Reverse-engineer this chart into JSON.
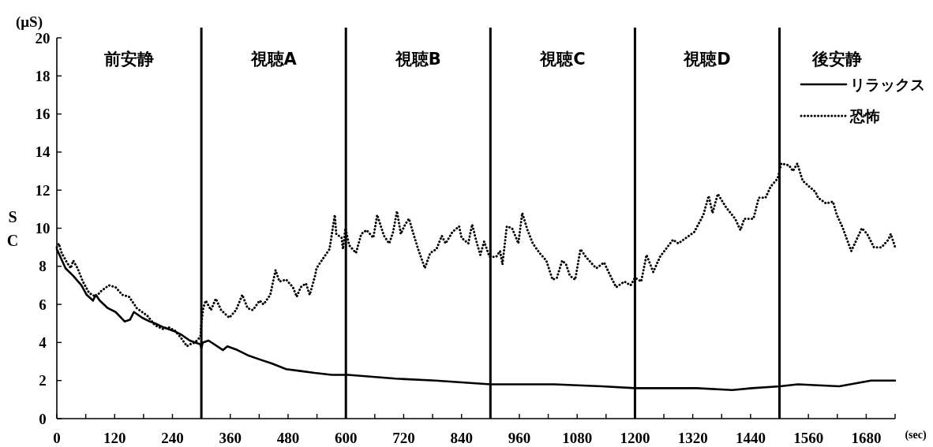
{
  "chart_data": {
    "type": "line",
    "xlabel": "(sec)",
    "ylabel": "SC",
    "annotations": [
      "(μS)",
      "前安静",
      "視聴A",
      "視聴B",
      "視聴C",
      "視聴D",
      "後安静"
    ],
    "xlim": [
      0,
      1740
    ],
    "ylim": [
      0,
      20
    ],
    "xticks": [
      0,
      {
        "value": 60,
        "label": null
      },
      120,
      {
        "value": 180,
        "label": null
      },
      240,
      {
        "value": 300,
        "label": null
      },
      360,
      {
        "value": 420,
        "label": null
      },
      480,
      {
        "value": 540,
        "label": null
      },
      600,
      {
        "value": 660,
        "label": null
      },
      720,
      {
        "value": 780,
        "label": null
      },
      840,
      {
        "value": 900,
        "label": null
      },
      960,
      {
        "value": 1020,
        "label": null
      },
      1080,
      {
        "value": 1140,
        "label": null
      },
      1200,
      {
        "value": 1260,
        "label": null
      },
      1320,
      {
        "value": 1380,
        "label": null
      },
      1440,
      {
        "value": 1500,
        "label": null
      },
      1560,
      {
        "value": 1620,
        "label": null
      },
      1680,
      {
        "value": 1740,
        "label": null
      }
    ],
    "yticks": [
      0,
      2,
      4,
      6,
      8,
      10,
      12,
      14,
      16,
      18,
      20
    ],
    "legend": "top right",
    "ref_lines": [
      {
        "axis": "x",
        "value": 300
      },
      {
        "axis": "x",
        "value": 600
      },
      {
        "axis": "x",
        "value": 900
      },
      {
        "axis": "x",
        "value": 1200
      },
      {
        "axis": "x",
        "value": 1500
      }
    ],
    "series": [
      {
        "name": "リラックス",
        "color": "#000000",
        "line_style": "solid",
        "x": [
          0,
          18,
          34,
          51,
          62,
          75,
          81,
          89,
          106,
          122,
          141,
          152,
          160,
          177,
          193,
          204,
          221,
          243,
          259,
          276,
          298,
          300,
          303,
          315,
          345,
          354,
          375,
          399,
          422,
          446,
          476,
          506,
          535,
          571,
          605,
          703,
          786,
          900,
          1032,
          1131,
          1201,
          1328,
          1402,
          1443,
          1501,
          1538,
          1624,
          1690,
          1740
        ],
        "values": [
          8.9,
          7.9,
          7.5,
          7.0,
          6.5,
          6.2,
          6.5,
          6.2,
          5.8,
          5.6,
          5.1,
          5.2,
          5.6,
          5.3,
          5.1,
          5.0,
          4.8,
          4.6,
          4.4,
          4.1,
          3.9,
          3.7,
          4.0,
          4.1,
          3.6,
          3.8,
          3.6,
          3.3,
          3.1,
          2.9,
          2.6,
          2.5,
          2.4,
          2.3,
          2.3,
          2.1,
          2.0,
          1.8,
          1.8,
          1.7,
          1.6,
          1.6,
          1.5,
          1.6,
          1.7,
          1.8,
          1.7,
          2.0,
          2.0
        ]
      },
      {
        "name": "恐怖",
        "color": "#000000",
        "line_style": "dotted",
        "x": [
          0,
          4,
          10,
          21,
          29,
          34,
          43,
          54,
          67,
          81,
          92,
          108,
          122,
          136,
          150,
          166,
          177,
          188,
          204,
          221,
          232,
          246,
          259,
          270,
          276,
          287,
          298,
          300,
          304,
          309,
          320,
          330,
          341,
          358,
          372,
          385,
          396,
          407,
          421,
          429,
          443,
          454,
          462,
          476,
          490,
          498,
          506,
          517,
          525,
          536,
          539,
          555,
          566,
          577,
          580,
          591,
          594,
          599,
          607,
          621,
          632,
          643,
          657,
          665,
          670,
          679,
          690,
          698,
          706,
          714,
          723,
          731,
          739,
          750,
          764,
          775,
          788,
          799,
          807,
          821,
          835,
          840,
          854,
          862,
          871,
          879,
          887,
          898,
          912,
          920,
          925,
          934,
          945,
          958,
          966,
          977,
          988,
          1002,
          1016,
          1029,
          1038,
          1049,
          1057,
          1065,
          1076,
          1087,
          1098,
          1112,
          1120,
          1136,
          1147,
          1161,
          1178,
          1191,
          1200,
          1213,
          1224,
          1238,
          1252,
          1279,
          1290,
          1323,
          1342,
          1353,
          1361,
          1372,
          1389,
          1408,
          1419,
          1427,
          1446,
          1457,
          1471,
          1482,
          1496,
          1504,
          1520,
          1528,
          1537,
          1548,
          1561,
          1575,
          1580,
          1597,
          1611,
          1619,
          1630,
          1649,
          1671,
          1682,
          1696,
          1712,
          1726,
          1731,
          1740
        ],
        "values": [
          9.0,
          9.2,
          8.7,
          8.2,
          7.9,
          8.3,
          7.9,
          7.2,
          6.6,
          6.4,
          6.7,
          7.0,
          6.9,
          6.5,
          6.4,
          5.8,
          5.6,
          5.4,
          4.9,
          4.7,
          4.8,
          4.6,
          4.2,
          3.8,
          3.9,
          4.0,
          4.3,
          5.0,
          5.8,
          6.2,
          5.7,
          6.3,
          5.7,
          5.3,
          5.7,
          6.5,
          5.8,
          5.7,
          6.2,
          6.0,
          6.5,
          7.8,
          7.2,
          7.3,
          6.9,
          6.4,
          6.9,
          7.1,
          6.5,
          7.5,
          7.9,
          8.5,
          8.9,
          10.7,
          9.7,
          9.5,
          8.9,
          10.0,
          9.1,
          8.7,
          9.7,
          9.9,
          9.5,
          10.7,
          10.3,
          9.6,
          9.2,
          9.8,
          10.9,
          9.7,
          10.2,
          10.5,
          9.8,
          8.9,
          7.9,
          8.7,
          8.9,
          9.6,
          9.2,
          9.8,
          10.1,
          9.5,
          9.2,
          10.2,
          9.3,
          8.6,
          9.3,
          8.5,
          8.5,
          8.8,
          8.1,
          10.1,
          10.0,
          9.2,
          10.8,
          9.9,
          9.2,
          8.7,
          8.3,
          7.3,
          7.4,
          8.3,
          8.1,
          7.5,
          7.3,
          8.9,
          8.5,
          8.1,
          7.9,
          8.2,
          7.6,
          6.9,
          7.2,
          7.0,
          7.4,
          7.2,
          8.6,
          7.7,
          8.5,
          9.4,
          9.2,
          9.8,
          10.7,
          11.7,
          10.8,
          11.8,
          11.1,
          10.5,
          9.9,
          10.5,
          10.5,
          11.6,
          11.6,
          12.2,
          12.6,
          13.4,
          13.3,
          13.0,
          13.4,
          12.5,
          12.2,
          11.9,
          11.6,
          11.3,
          11.4,
          10.7,
          10.1,
          8.8,
          10.0,
          9.7,
          9.0,
          9.0,
          9.4,
          9.7,
          9.0
        ]
      }
    ]
  }
}
